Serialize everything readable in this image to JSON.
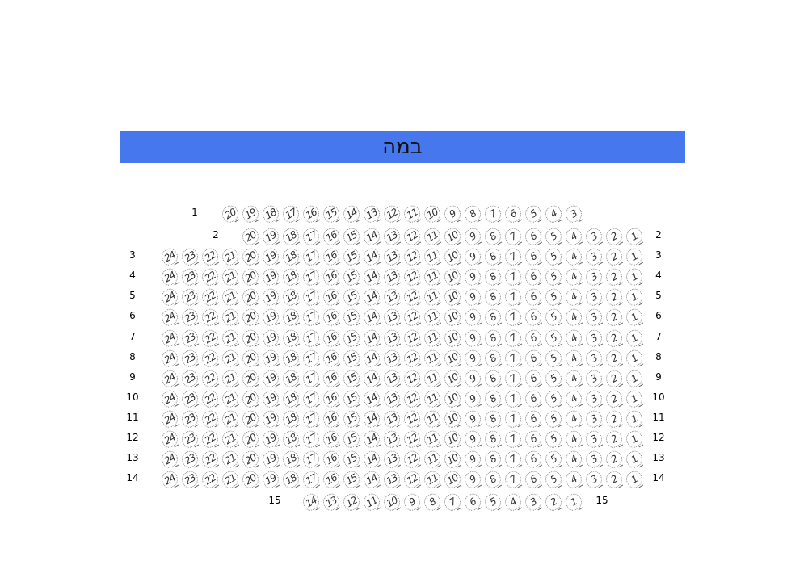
{
  "stage": {
    "label": "במה",
    "color": "#4677ec"
  },
  "rows": [
    {
      "label": "1",
      "seats_high": 20,
      "seats_low": 3,
      "label_right": false
    },
    {
      "label": "2",
      "seats_high": 20,
      "seats_low": 1,
      "label_right": true
    },
    {
      "label": "3",
      "seats_high": 24,
      "seats_low": 1,
      "label_right": true
    },
    {
      "label": "4",
      "seats_high": 24,
      "seats_low": 1,
      "label_right": true
    },
    {
      "label": "5",
      "seats_high": 24,
      "seats_low": 1,
      "label_right": true
    },
    {
      "label": "6",
      "seats_high": 24,
      "seats_low": 1,
      "label_right": true
    },
    {
      "label": "7",
      "seats_high": 24,
      "seats_low": 1,
      "label_right": true
    },
    {
      "label": "8",
      "seats_high": 24,
      "seats_low": 1,
      "label_right": true
    },
    {
      "label": "9",
      "seats_high": 24,
      "seats_low": 1,
      "label_right": true
    },
    {
      "label": "10",
      "seats_high": 24,
      "seats_low": 1,
      "label_right": true
    },
    {
      "label": "11",
      "seats_high": 24,
      "seats_low": 1,
      "label_right": true
    },
    {
      "label": "12",
      "seats_high": 24,
      "seats_low": 1,
      "label_right": true
    },
    {
      "label": "13",
      "seats_high": 24,
      "seats_low": 1,
      "label_right": true
    },
    {
      "label": "14",
      "seats_high": 24,
      "seats_low": 1,
      "label_right": true
    },
    {
      "label": "15",
      "seats_high": 14,
      "seats_low": 1,
      "label_right": true
    }
  ]
}
